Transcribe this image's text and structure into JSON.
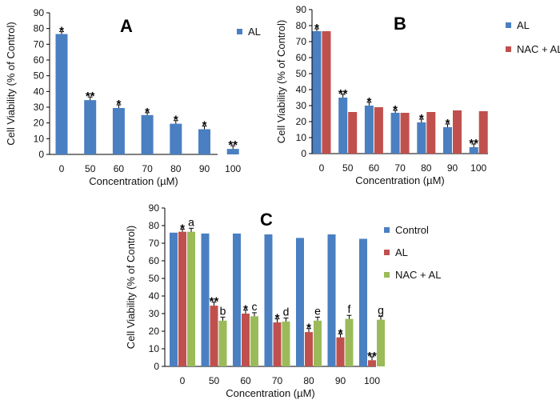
{
  "chart_data": [
    {
      "type": "bar",
      "panel": "A",
      "categories": [
        "0",
        "50",
        "60",
        "70",
        "80",
        "90",
        "100"
      ],
      "series": [
        {
          "name": "AL",
          "color": "#4a7fc1",
          "values": [
            76.5,
            34.5,
            29.5,
            25,
            19.5,
            16,
            3.5
          ],
          "errors": [
            1.5,
            2,
            2,
            1.5,
            2,
            2,
            2
          ],
          "labels": [
            "*",
            "**",
            "*",
            "*",
            "*",
            "*",
            "**"
          ]
        }
      ],
      "xlabel": "Concentration (µM)",
      "ylabel": "Cell Viability (% of Control)",
      "ylim": [
        0,
        90
      ],
      "yticks": [
        0,
        10,
        20,
        30,
        40,
        50,
        60,
        70,
        80,
        90
      ],
      "legend": "top-right"
    },
    {
      "type": "bar",
      "panel": "B",
      "categories": [
        "0",
        "50",
        "60",
        "70",
        "80",
        "90",
        "100"
      ],
      "series": [
        {
          "name": "AL",
          "color": "#4a7fc1",
          "values": [
            76.5,
            35,
            30,
            25.5,
            19.5,
            16.5,
            4
          ],
          "errors": [
            1.5,
            2,
            2,
            1.5,
            2,
            2,
            2
          ],
          "labels": [
            "*",
            "**",
            "*",
            "*",
            "*",
            "*",
            "**"
          ]
        },
        {
          "name": "NAC + AL",
          "color": "#c0504d",
          "values": [
            76.5,
            26,
            29,
            25.5,
            26,
            27,
            26.5
          ],
          "errors": [
            0,
            0,
            0,
            0,
            0,
            0,
            0
          ],
          "labels": [
            "",
            "",
            "",
            "",
            "",
            "",
            ""
          ]
        }
      ],
      "xlabel": "Concentration (µM)",
      "ylabel": "Cell Viability (% of Control)",
      "ylim": [
        0,
        90
      ],
      "yticks": [
        0,
        10,
        20,
        30,
        40,
        50,
        60,
        70,
        80,
        90
      ],
      "legend": "top-right"
    },
    {
      "type": "bar",
      "panel": "C",
      "categories": [
        "0",
        "50",
        "60",
        "70",
        "80",
        "90",
        "100"
      ],
      "series": [
        {
          "name": "Control",
          "color": "#4a7fc1",
          "values": [
            76,
            75.5,
            75.5,
            75,
            73,
            75,
            72.5
          ],
          "errors": [
            0,
            0,
            0,
            0,
            0,
            0,
            0
          ],
          "labels": [
            "",
            "",
            "",
            "",
            "",
            "",
            ""
          ]
        },
        {
          "name": "AL",
          "color": "#c0504d",
          "values": [
            76.5,
            34.5,
            30,
            25,
            19.5,
            16.5,
            3.5
          ],
          "errors": [
            1.5,
            2,
            2,
            2,
            2,
            2,
            2
          ],
          "labels": [
            "*",
            "**",
            "*",
            "*",
            "*",
            "*",
            "**"
          ]
        },
        {
          "name": "NAC + AL",
          "color": "#9bbb59",
          "values": [
            76.5,
            26,
            28.5,
            25.5,
            26,
            27,
            26.5
          ],
          "errors": [
            2,
            2,
            2,
            2,
            2,
            2,
            2
          ],
          "labels": [
            "a",
            "b",
            "c",
            "d",
            "e",
            "f",
            "g"
          ]
        }
      ],
      "xlabel": "Concentration (µM)",
      "ylabel": "Cell Viability (% of Control)",
      "ylim": [
        0,
        90
      ],
      "yticks": [
        0,
        10,
        20,
        30,
        40,
        50,
        60,
        70,
        80,
        90
      ],
      "legend": "right"
    }
  ]
}
